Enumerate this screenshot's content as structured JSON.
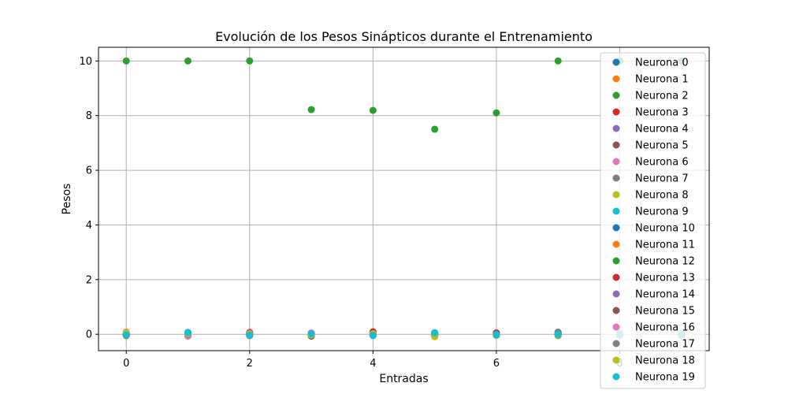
{
  "chart_data": {
    "type": "scatter",
    "title": "Evolución de los Pesos Sinápticos durante el Entrenamiento",
    "xlabel": "Entradas",
    "ylabel": "Pesos",
    "xlim": [
      -0.45,
      9.45
    ],
    "ylim": [
      -0.6,
      10.5
    ],
    "xticks": [
      0,
      2,
      4,
      6,
      8
    ],
    "yticks": [
      0,
      2,
      4,
      6,
      8,
      10
    ],
    "grid": true,
    "legend_position": "right",
    "colors": [
      "#1f77b4",
      "#ff7f0e",
      "#2ca02c",
      "#d62728",
      "#9467bd",
      "#8c564b",
      "#e377c2",
      "#7f7f7f",
      "#bcbd22",
      "#17becf"
    ],
    "x": [
      0,
      1,
      2,
      3,
      4,
      5,
      6,
      7,
      8,
      9
    ],
    "series": [
      {
        "name": "Neurona 0",
        "values": [
          0.0,
          0.02,
          -0.02,
          0.01,
          0.0,
          -0.03,
          0.02,
          0.01,
          -0.01,
          0.0
        ]
      },
      {
        "name": "Neurona 1",
        "values": [
          0.08,
          -0.01,
          0.06,
          -0.04,
          0.03,
          0.02,
          -0.02,
          0.05,
          0.0,
          0.01
        ]
      },
      {
        "name": "Neurona 2",
        "values": [
          10.0,
          10.0,
          10.0,
          8.22,
          8.19,
          7.5,
          8.1,
          10.0,
          10.0,
          10.0
        ]
      },
      {
        "name": "Neurona 3",
        "values": [
          -0.02,
          0.03,
          0.07,
          -0.03,
          0.09,
          0.01,
          0.04,
          -0.02,
          0.02,
          0.0
        ]
      },
      {
        "name": "Neurona 4",
        "values": [
          0.03,
          -0.02,
          0.01,
          0.02,
          -0.01,
          0.04,
          -0.03,
          0.06,
          0.01,
          -0.02
        ]
      },
      {
        "name": "Neurona 5",
        "values": [
          -0.05,
          0.01,
          0.03,
          -0.06,
          0.02,
          -0.04,
          0.05,
          0.02,
          -0.03,
          0.01
        ]
      },
      {
        "name": "Neurona 6",
        "values": [
          0.02,
          -0.07,
          0.0,
          0.05,
          -0.02,
          0.03,
          -0.01,
          -0.03,
          0.04,
          -0.02
        ]
      },
      {
        "name": "Neurona 7",
        "values": [
          -0.01,
          0.04,
          -0.03,
          0.0,
          0.01,
          -0.02,
          0.02,
          0.08,
          -0.04,
          0.02
        ]
      },
      {
        "name": "Neurona 8",
        "values": [
          0.06,
          0.0,
          -0.04,
          -0.02,
          0.03,
          -0.09,
          0.01,
          -0.05,
          0.02,
          0.03
        ]
      },
      {
        "name": "Neurona 9",
        "values": [
          -0.03,
          0.07,
          0.02,
          -0.01,
          -0.05,
          0.06,
          -0.04,
          0.0,
          0.05,
          -0.01
        ]
      },
      {
        "name": "Neurona 10",
        "values": [
          0.01,
          -0.03,
          0.04,
          0.02,
          -0.02,
          0.0,
          0.03,
          -0.01,
          -0.02,
          0.04
        ]
      },
      {
        "name": "Neurona 11",
        "values": [
          -0.04,
          0.02,
          0.05,
          -0.05,
          0.04,
          -0.01,
          -0.03,
          0.03,
          0.0,
          -0.03
        ]
      },
      {
        "name": "Neurona 12",
        "values": [
          0.02,
          -0.04,
          -0.01,
          0.03,
          0.0,
          0.02,
          0.04,
          -0.02,
          0.03,
          0.02
        ]
      },
      {
        "name": "Neurona 13",
        "values": [
          -0.02,
          0.01,
          0.03,
          0.0,
          0.06,
          -0.03,
          0.05,
          0.01,
          -0.01,
          0.0
        ]
      },
      {
        "name": "Neurona 14",
        "values": [
          0.04,
          -0.01,
          -0.02,
          -0.04,
          0.02,
          0.01,
          -0.02,
          0.04,
          0.02,
          -0.04
        ]
      },
      {
        "name": "Neurona 15",
        "values": [
          -0.01,
          0.03,
          0.01,
          -0.07,
          -0.03,
          0.0,
          0.02,
          -0.04,
          0.01,
          0.03
        ]
      },
      {
        "name": "Neurona 16",
        "values": [
          0.03,
          -0.05,
          0.02,
          0.04,
          0.01,
          -0.02,
          -0.01,
          0.02,
          -0.03,
          0.01
        ]
      },
      {
        "name": "Neurona 17",
        "values": [
          -0.03,
          0.0,
          -0.05,
          0.01,
          -0.04,
          0.03,
          0.0,
          0.07,
          0.0,
          -0.02
        ]
      },
      {
        "name": "Neurona 18",
        "values": [
          0.05,
          0.02,
          0.0,
          -0.03,
          0.02,
          -0.07,
          -0.04,
          -0.03,
          0.03,
          0.02
        ]
      },
      {
        "name": "Neurona 19",
        "values": [
          -0.02,
          0.06,
          -0.03,
          0.02,
          -0.04,
          0.05,
          -0.02,
          -0.01,
          0.01,
          -0.01
        ]
      }
    ]
  }
}
